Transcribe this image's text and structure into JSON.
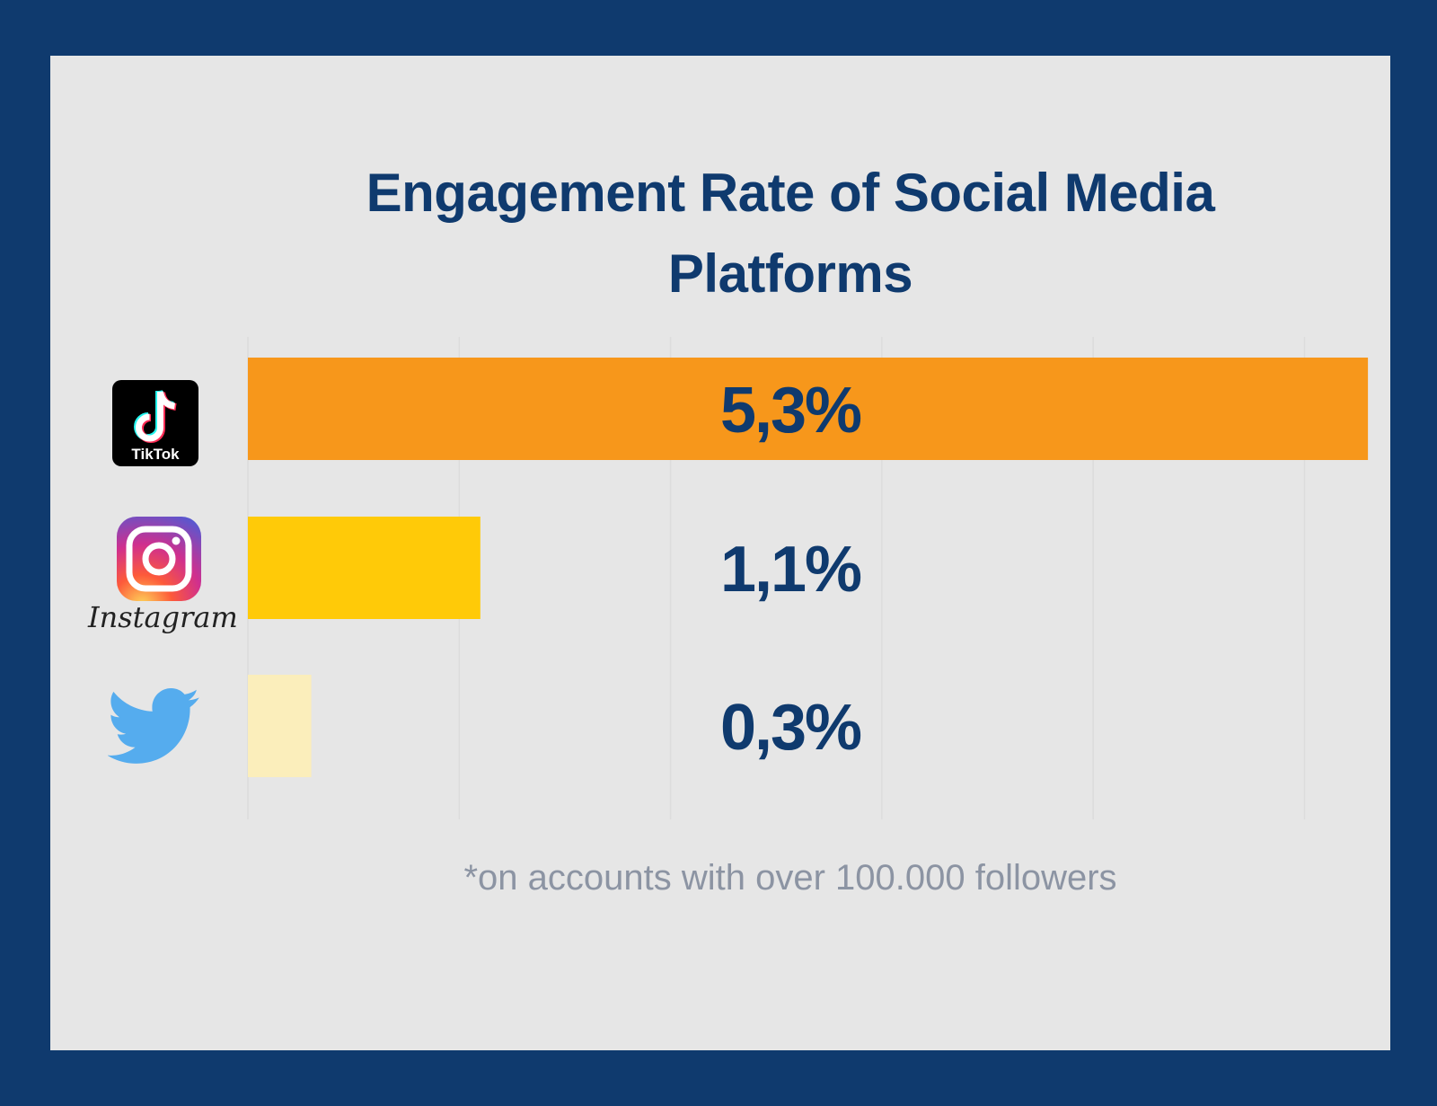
{
  "chart_data": {
    "type": "bar",
    "orientation": "horizontal",
    "title": "Engagement Rate of Social Media Platforms",
    "categories": [
      "TikTok",
      "Instagram",
      "Twitter"
    ],
    "values": [
      5.3,
      1.1,
      0.3
    ],
    "value_labels": [
      "5,3%",
      "1,1%",
      "0,3%"
    ],
    "colors": [
      "#f7971b",
      "#ffca08",
      "#fbeebb"
    ],
    "label_color": "#0f3a6e",
    "xlim": [
      0,
      6
    ],
    "gridlines": [
      1,
      2,
      3,
      4,
      5
    ],
    "grid": true,
    "footnote": "*on accounts with over 100.000 followers"
  },
  "logos": {
    "tiktok_text": "TikTok",
    "instagram_text": "Instagram"
  },
  "colors": {
    "background": "#0f3a6e",
    "panel": "#e6e6e6",
    "twitter": "#55acee"
  }
}
